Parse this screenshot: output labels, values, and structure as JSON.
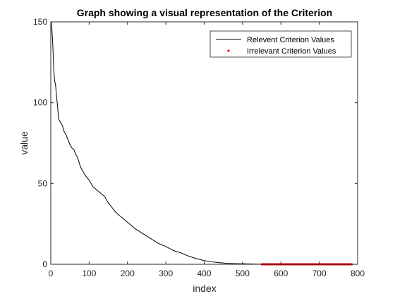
{
  "chart_data": {
    "type": "line",
    "title": "Graph showing a visual representation of the Criterion",
    "xlabel": "index",
    "ylabel": "value",
    "xlim": [
      0,
      800
    ],
    "ylim": [
      0,
      150
    ],
    "xticks": [
      0,
      100,
      200,
      300,
      400,
      500,
      600,
      700,
      800
    ],
    "yticks": [
      0,
      50,
      100,
      150
    ],
    "grid": false,
    "legend_position": "top-right",
    "series": [
      {
        "name": "Relevent Criterion Values",
        "style": "line",
        "color": "#000000",
        "x": [
          1,
          3,
          5,
          8,
          10,
          12,
          15,
          18,
          20,
          25,
          30,
          35,
          40,
          45,
          50,
          55,
          60,
          65,
          70,
          75,
          80,
          90,
          100,
          110,
          120,
          130,
          140,
          150,
          160,
          170,
          180,
          190,
          200,
          220,
          240,
          260,
          280,
          300,
          320,
          340,
          360,
          380,
          400,
          420,
          440,
          460,
          480,
          500,
          520,
          540,
          550
        ],
        "y": [
          150,
          145,
          137,
          120,
          113,
          112,
          104,
          97,
          90,
          88,
          86,
          82,
          80,
          77,
          74,
          72,
          71,
          68,
          66,
          62,
          59,
          55,
          52,
          48,
          46,
          44,
          42,
          38,
          35,
          32,
          30,
          28,
          26,
          22,
          19,
          16,
          13,
          11,
          8.5,
          7,
          5,
          3.5,
          2.3,
          1.5,
          1,
          0.6,
          0.4,
          0.3,
          0.2,
          0.1,
          0.05
        ]
      },
      {
        "name": "Irrelevant Criterion Values",
        "style": "marker",
        "color": "#ff0000",
        "x_range": [
          550,
          785
        ],
        "y": 0
      }
    ]
  }
}
